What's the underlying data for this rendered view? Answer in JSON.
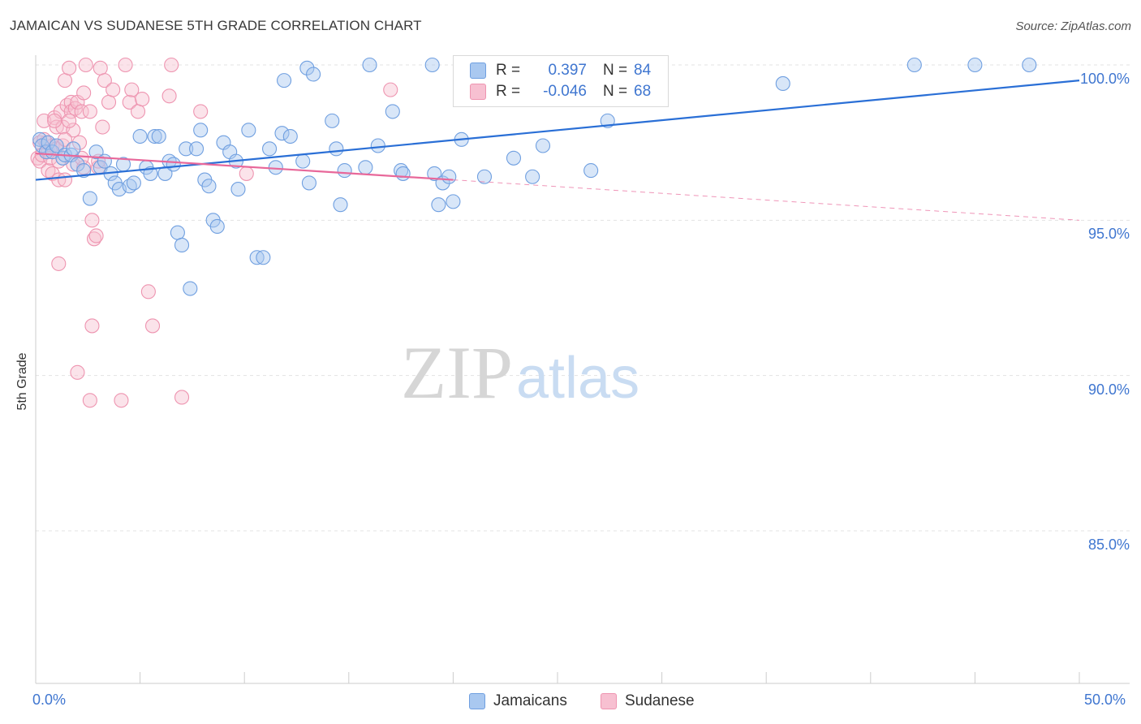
{
  "chart_data": {
    "type": "scatter",
    "title": "JAMAICAN VS SUDANESE 5TH GRADE CORRELATION CHART",
    "source": "Source: ZipAtlas.com",
    "ylabel": "5th Grade",
    "xlim": [
      0,
      50
    ],
    "ylim": [
      80.5,
      100.8
    ],
    "x_tick_labels": {
      "min": "0.0%",
      "max": "50.0%"
    },
    "y_ticks": [
      {
        "value": 100,
        "label": "100.0%"
      },
      {
        "value": 95,
        "label": "95.0%"
      },
      {
        "value": 90,
        "label": "90.0%"
      },
      {
        "value": 85,
        "label": "85.0%"
      }
    ],
    "watermark": {
      "part1": "ZIP",
      "part2": "atlas"
    },
    "legend": [
      {
        "r_label": "R =",
        "r_value": "0.397",
        "n_label": "N =",
        "n_value": "84"
      },
      {
        "r_label": "R =",
        "r_value": "-0.046",
        "n_label": "N =",
        "n_value": "68"
      }
    ],
    "series": [
      {
        "name": "Jamaicans",
        "color": "#6f9fe0",
        "fill": "#a9c8f0",
        "trend": {
          "x": [
            0,
            50
          ],
          "y": [
            96.3,
            99.5
          ],
          "color": "#2a6fd6"
        },
        "points": [
          [
            0.2,
            97.6
          ],
          [
            0.3,
            97.4
          ],
          [
            0.5,
            97.2
          ],
          [
            0.6,
            97.5
          ],
          [
            0.8,
            97.2
          ],
          [
            1.0,
            97.4
          ],
          [
            1.3,
            97.0
          ],
          [
            1.4,
            97.1
          ],
          [
            1.7,
            97.1
          ],
          [
            1.8,
            97.3
          ],
          [
            2.0,
            96.8
          ],
          [
            2.3,
            96.6
          ],
          [
            2.6,
            95.7
          ],
          [
            2.9,
            97.2
          ],
          [
            3.1,
            96.7
          ],
          [
            3.3,
            96.9
          ],
          [
            3.6,
            96.5
          ],
          [
            3.8,
            96.2
          ],
          [
            4.0,
            96.0
          ],
          [
            4.2,
            96.8
          ],
          [
            4.5,
            96.1
          ],
          [
            4.7,
            96.2
          ],
          [
            5.0,
            97.7
          ],
          [
            5.3,
            96.7
          ],
          [
            5.5,
            96.5
          ],
          [
            5.7,
            97.7
          ],
          [
            5.9,
            97.7
          ],
          [
            6.2,
            96.5
          ],
          [
            6.4,
            96.9
          ],
          [
            6.6,
            96.8
          ],
          [
            6.8,
            94.6
          ],
          [
            7.0,
            94.2
          ],
          [
            7.2,
            97.3
          ],
          [
            7.4,
            92.8
          ],
          [
            7.7,
            97.3
          ],
          [
            7.9,
            97.9
          ],
          [
            8.1,
            96.3
          ],
          [
            8.3,
            96.1
          ],
          [
            8.5,
            95.0
          ],
          [
            8.7,
            94.8
          ],
          [
            9.0,
            97.5
          ],
          [
            9.3,
            97.2
          ],
          [
            9.6,
            96.9
          ],
          [
            9.7,
            96.0
          ],
          [
            10.2,
            97.9
          ],
          [
            10.6,
            93.8
          ],
          [
            10.9,
            93.8
          ],
          [
            11.2,
            97.3
          ],
          [
            11.5,
            96.7
          ],
          [
            11.8,
            97.8
          ],
          [
            11.9,
            99.5
          ],
          [
            12.2,
            97.7
          ],
          [
            12.8,
            96.9
          ],
          [
            13.1,
            96.2
          ],
          [
            13.0,
            99.9
          ],
          [
            13.3,
            99.7
          ],
          [
            14.2,
            98.2
          ],
          [
            14.4,
            97.3
          ],
          [
            14.6,
            95.5
          ],
          [
            14.8,
            96.6
          ],
          [
            15.8,
            96.7
          ],
          [
            16.0,
            100.0
          ],
          [
            16.4,
            97.4
          ],
          [
            17.1,
            98.5
          ],
          [
            17.5,
            96.6
          ],
          [
            17.6,
            96.5
          ],
          [
            19.0,
            100.0
          ],
          [
            19.1,
            96.5
          ],
          [
            19.3,
            95.5
          ],
          [
            19.5,
            96.2
          ],
          [
            19.8,
            96.4
          ],
          [
            20.0,
            95.6
          ],
          [
            20.4,
            97.6
          ],
          [
            21.5,
            96.4
          ],
          [
            22.9,
            97.0
          ],
          [
            23.8,
            96.4
          ],
          [
            24.3,
            97.4
          ],
          [
            26.6,
            96.6
          ],
          [
            27.6,
            100.0
          ],
          [
            27.4,
            98.2
          ],
          [
            35.8,
            99.4
          ],
          [
            42.1,
            100.0
          ],
          [
            45.0,
            100.0
          ],
          [
            47.6,
            100.0
          ]
        ]
      },
      {
        "name": "Sudanese",
        "color": "#ee94b0",
        "fill": "#f7c0d1",
        "trend": {
          "x": [
            0,
            20
          ],
          "y": [
            97.15,
            96.3
          ],
          "color": "#e8689a"
        },
        "trend_extension": {
          "x": [
            20,
            50
          ],
          "y": [
            96.3,
            95.0
          ]
        },
        "points": [
          [
            0.1,
            97.0
          ],
          [
            0.2,
            96.9
          ],
          [
            0.2,
            97.5
          ],
          [
            0.3,
            97.1
          ],
          [
            0.4,
            98.2
          ],
          [
            0.5,
            97.5
          ],
          [
            0.6,
            97.2
          ],
          [
            0.6,
            96.6
          ],
          [
            0.7,
            97.0
          ],
          [
            0.8,
            96.5
          ],
          [
            0.8,
            97.4
          ],
          [
            0.9,
            98.3
          ],
          [
            1.0,
            98.0
          ],
          [
            1.0,
            97.3
          ],
          [
            1.1,
            96.9
          ],
          [
            1.1,
            96.3
          ],
          [
            1.2,
            98.5
          ],
          [
            1.3,
            98.0
          ],
          [
            1.3,
            97.4
          ],
          [
            1.4,
            96.3
          ],
          [
            1.4,
            99.5
          ],
          [
            1.5,
            98.7
          ],
          [
            1.6,
            99.9
          ],
          [
            1.7,
            98.8
          ],
          [
            1.7,
            98.5
          ],
          [
            1.8,
            97.9
          ],
          [
            1.8,
            96.8
          ],
          [
            1.9,
            98.6
          ],
          [
            2.0,
            98.8
          ],
          [
            2.0,
            90.1
          ],
          [
            2.1,
            97.5
          ],
          [
            2.2,
            98.5
          ],
          [
            2.3,
            99.1
          ],
          [
            2.3,
            96.7
          ],
          [
            2.4,
            100.0
          ],
          [
            2.6,
            98.5
          ],
          [
            2.7,
            95.0
          ],
          [
            2.8,
            94.4
          ],
          [
            2.9,
            94.5
          ],
          [
            3.0,
            96.7
          ],
          [
            3.1,
            99.9
          ],
          [
            3.2,
            98.0
          ],
          [
            3.3,
            99.5
          ],
          [
            3.5,
            98.8
          ],
          [
            3.7,
            99.2
          ],
          [
            4.1,
            89.2
          ],
          [
            4.3,
            100.0
          ],
          [
            4.5,
            98.8
          ],
          [
            4.6,
            99.2
          ],
          [
            4.9,
            98.5
          ],
          [
            5.1,
            98.9
          ],
          [
            5.4,
            92.7
          ],
          [
            5.6,
            91.6
          ],
          [
            6.4,
            99.0
          ],
          [
            6.5,
            100.0
          ],
          [
            7.0,
            89.3
          ],
          [
            7.9,
            98.5
          ],
          [
            10.1,
            96.5
          ],
          [
            17.0,
            99.2
          ],
          [
            1.1,
            93.6
          ],
          [
            2.7,
            91.6
          ],
          [
            2.6,
            89.2
          ],
          [
            0.9,
            98.2
          ],
          [
            1.6,
            98.2
          ],
          [
            2.2,
            97.0
          ],
          [
            1.4,
            97.6
          ],
          [
            0.4,
            97.6
          ],
          [
            3.0,
            96.9
          ]
        ]
      }
    ]
  }
}
